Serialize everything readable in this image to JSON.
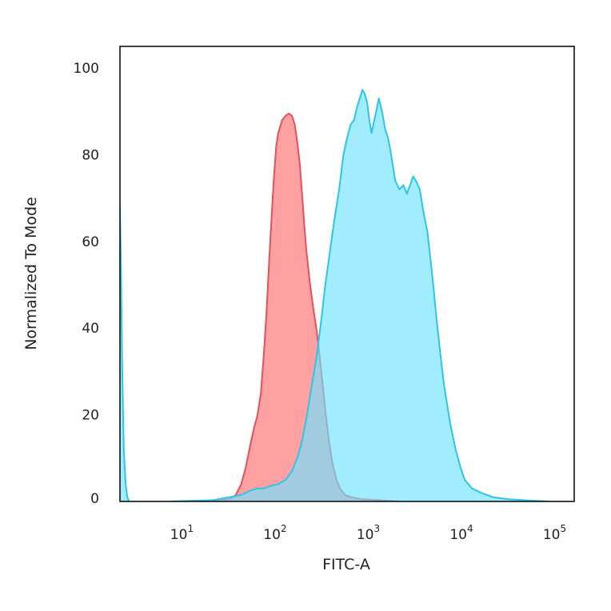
{
  "chart_data": {
    "type": "area",
    "title": "",
    "xlabel": "FITC-A",
    "ylabel": "Normalized To Mode",
    "x_scale": "log",
    "xlim": [
      2,
      150000
    ],
    "ylim": [
      0,
      105
    ],
    "grid": false,
    "legend": "none",
    "y_ticks": [
      0,
      20,
      40,
      60,
      80,
      100
    ],
    "x_ticks": [
      {
        "value": 10,
        "base": "10",
        "exp": "1"
      },
      {
        "value": 100,
        "base": "10",
        "exp": "2"
      },
      {
        "value": 1000,
        "base": "10",
        "exp": "3"
      },
      {
        "value": 10000,
        "base": "10",
        "exp": "4"
      },
      {
        "value": 100000,
        "base": "10",
        "exp": "5"
      }
    ],
    "series": [
      {
        "color": "#e2525a",
        "fill": "#ff8f93",
        "points": [
          [
            20,
            0
          ],
          [
            30,
            0.5
          ],
          [
            35,
            1.5
          ],
          [
            40,
            4
          ],
          [
            45,
            8
          ],
          [
            50,
            13
          ],
          [
            55,
            17
          ],
          [
            60,
            20
          ],
          [
            65,
            25
          ],
          [
            70,
            34
          ],
          [
            75,
            44
          ],
          [
            80,
            56
          ],
          [
            85,
            66
          ],
          [
            90,
            75
          ],
          [
            95,
            82
          ],
          [
            100,
            85
          ],
          [
            110,
            88
          ],
          [
            120,
            89
          ],
          [
            130,
            89.5
          ],
          [
            140,
            89
          ],
          [
            150,
            87
          ],
          [
            160,
            83
          ],
          [
            170,
            78
          ],
          [
            180,
            71
          ],
          [
            190,
            64
          ],
          [
            200,
            58
          ],
          [
            220,
            50
          ],
          [
            240,
            44
          ],
          [
            260,
            39
          ],
          [
            280,
            33
          ],
          [
            300,
            27
          ],
          [
            320,
            21
          ],
          [
            350,
            14
          ],
          [
            380,
            9
          ],
          [
            420,
            5
          ],
          [
            460,
            3
          ],
          [
            520,
            1.5
          ],
          [
            600,
            1
          ],
          [
            800,
            0.5
          ],
          [
            1200,
            0.3
          ],
          [
            2000,
            0
          ]
        ]
      },
      {
        "color": "#2fc4e6",
        "fill": "#6fe2ff",
        "points": [
          [
            7,
            0
          ],
          [
            20,
            0.3
          ],
          [
            30,
            1
          ],
          [
            40,
            1.5
          ],
          [
            50,
            2.5
          ],
          [
            60,
            3
          ],
          [
            70,
            3
          ],
          [
            80,
            3.5
          ],
          [
            100,
            4
          ],
          [
            120,
            5
          ],
          [
            140,
            7
          ],
          [
            160,
            10
          ],
          [
            180,
            14
          ],
          [
            200,
            19
          ],
          [
            230,
            27
          ],
          [
            260,
            34
          ],
          [
            290,
            42
          ],
          [
            320,
            50
          ],
          [
            360,
            58
          ],
          [
            400,
            65
          ],
          [
            450,
            72
          ],
          [
            500,
            80
          ],
          [
            550,
            84
          ],
          [
            600,
            87
          ],
          [
            650,
            88
          ],
          [
            700,
            91
          ],
          [
            750,
            93
          ],
          [
            800,
            95
          ],
          [
            850,
            94
          ],
          [
            900,
            92
          ],
          [
            950,
            88
          ],
          [
            1000,
            85
          ],
          [
            1100,
            89
          ],
          [
            1200,
            93
          ],
          [
            1300,
            90
          ],
          [
            1400,
            86
          ],
          [
            1500,
            84
          ],
          [
            1600,
            81
          ],
          [
            1800,
            74
          ],
          [
            2000,
            72
          ],
          [
            2200,
            73
          ],
          [
            2400,
            71
          ],
          [
            2600,
            73
          ],
          [
            2800,
            75
          ],
          [
            3000,
            74
          ],
          [
            3300,
            72
          ],
          [
            3600,
            67
          ],
          [
            4000,
            62
          ],
          [
            4500,
            52
          ],
          [
            5000,
            42
          ],
          [
            5500,
            34
          ],
          [
            6000,
            27
          ],
          [
            7000,
            18
          ],
          [
            8000,
            12
          ],
          [
            9000,
            8
          ],
          [
            10000,
            5
          ],
          [
            12000,
            3
          ],
          [
            15000,
            2
          ],
          [
            20000,
            1
          ],
          [
            30000,
            0.5
          ],
          [
            50000,
            0.2
          ],
          [
            80000,
            0
          ]
        ]
      },
      {
        "color": "#2fc4e6",
        "fill": "#6fe2ff",
        "points": [
          [
            2,
            68
          ],
          [
            2.05,
            55
          ],
          [
            2.12,
            30
          ],
          [
            2.2,
            12
          ],
          [
            2.3,
            4
          ],
          [
            2.4,
            1
          ],
          [
            2.5,
            0
          ]
        ]
      }
    ]
  }
}
